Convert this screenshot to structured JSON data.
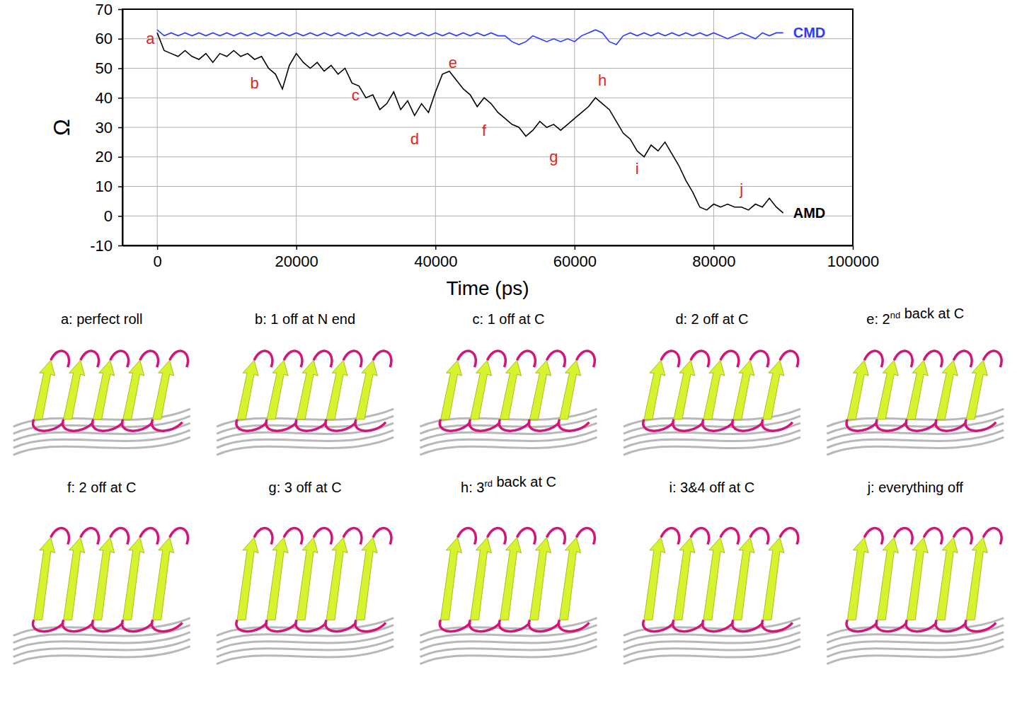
{
  "chart_data": {
    "type": "line",
    "x_label": "Time (ps)",
    "y_label": "Ω",
    "xlim": [
      -5000,
      100000
    ],
    "ylim": [
      -10,
      70
    ],
    "xticks": [
      0,
      20000,
      40000,
      60000,
      80000,
      100000
    ],
    "yticks": [
      -10,
      0,
      10,
      20,
      30,
      40,
      50,
      60,
      70
    ],
    "grid": true,
    "x": [
      0,
      1000,
      2000,
      3000,
      4000,
      5000,
      6000,
      7000,
      8000,
      9000,
      10000,
      11000,
      12000,
      13000,
      14000,
      15000,
      16000,
      17000,
      18000,
      19000,
      20000,
      21000,
      22000,
      23000,
      24000,
      25000,
      26000,
      27000,
      28000,
      29000,
      30000,
      31000,
      32000,
      33000,
      34000,
      35000,
      36000,
      37000,
      38000,
      39000,
      40000,
      41000,
      42000,
      43000,
      44000,
      45000,
      46000,
      47000,
      48000,
      49000,
      50000,
      51000,
      52000,
      53000,
      54000,
      55000,
      56000,
      57000,
      58000,
      59000,
      60000,
      61000,
      62000,
      63000,
      64000,
      65000,
      66000,
      67000,
      68000,
      69000,
      70000,
      71000,
      72000,
      73000,
      74000,
      75000,
      76000,
      77000,
      78000,
      79000,
      80000,
      81000,
      82000,
      83000,
      84000,
      85000,
      86000,
      87000,
      88000,
      89000,
      90000
    ],
    "series": [
      {
        "name": "CMD",
        "color": "#2b3cff",
        "values": [
          63,
          61,
          62,
          61,
          62,
          61,
          62,
          61,
          62,
          61,
          62,
          61,
          62,
          61,
          62,
          61,
          62,
          61,
          62,
          61,
          62,
          61,
          62,
          61,
          62,
          61,
          62,
          61,
          62,
          61,
          62,
          61,
          62,
          61,
          62,
          61,
          62,
          61,
          62,
          61,
          62,
          61,
          62,
          61,
          62,
          61,
          62,
          61,
          62,
          61,
          61,
          59,
          58,
          59,
          61,
          60,
          59,
          60,
          59,
          60,
          59,
          61,
          62,
          63,
          62,
          59,
          58,
          61,
          62,
          61,
          62,
          61,
          62,
          61,
          62,
          61,
          62,
          61,
          62,
          61,
          62,
          61,
          60,
          61,
          62,
          61,
          60,
          62,
          61,
          62,
          62
        ]
      },
      {
        "name": "AMD",
        "color": "#000000",
        "values": [
          62,
          56,
          55,
          54,
          56,
          54,
          53,
          55,
          52,
          55,
          54,
          56,
          54,
          55,
          53,
          54,
          50,
          48,
          43,
          51,
          55,
          52,
          50,
          52,
          49,
          51,
          48,
          50,
          45,
          44,
          40,
          41,
          36,
          38,
          42,
          36,
          39,
          34,
          38,
          35,
          42,
          48,
          49,
          46,
          43,
          41,
          37,
          40,
          38,
          35,
          33,
          31,
          30,
          27,
          29,
          32,
          30,
          31,
          29,
          31,
          33,
          35,
          37,
          40,
          38,
          36,
          32,
          28,
          26,
          22,
          20,
          24,
          22,
          25,
          21,
          17,
          12,
          8,
          3,
          2,
          4,
          3,
          4,
          3,
          3,
          2,
          4,
          3,
          6,
          3,
          1
        ]
      }
    ],
    "annotations": [
      {
        "text": "a",
        "x": -1000,
        "y": 60
      },
      {
        "text": "b",
        "x": 14000,
        "y": 45
      },
      {
        "text": "c",
        "x": 28500,
        "y": 41
      },
      {
        "text": "d",
        "x": 37000,
        "y": 26
      },
      {
        "text": "e",
        "x": 42500,
        "y": 52
      },
      {
        "text": "f",
        "x": 47000,
        "y": 29
      },
      {
        "text": "g",
        "x": 57000,
        "y": 20
      },
      {
        "text": "h",
        "x": 64000,
        "y": 46
      },
      {
        "text": "i",
        "x": 69000,
        "y": 16
      },
      {
        "text": "j",
        "x": 84000,
        "y": 9
      }
    ]
  },
  "panels": [
    {
      "caption": "a: perfect roll"
    },
    {
      "caption": "b: 1 off at N end"
    },
    {
      "caption": "c: 1 off at C"
    },
    {
      "caption": "d: 2 off at C"
    },
    {
      "caption": "e: 2nd back at C"
    },
    {
      "caption": "f: 2 off at C"
    },
    {
      "caption": "g: 3 off at C"
    },
    {
      "caption": "h: 3rd back at C"
    },
    {
      "caption": "i: 3&4 off at C"
    },
    {
      "caption": "j: everything off"
    }
  ]
}
